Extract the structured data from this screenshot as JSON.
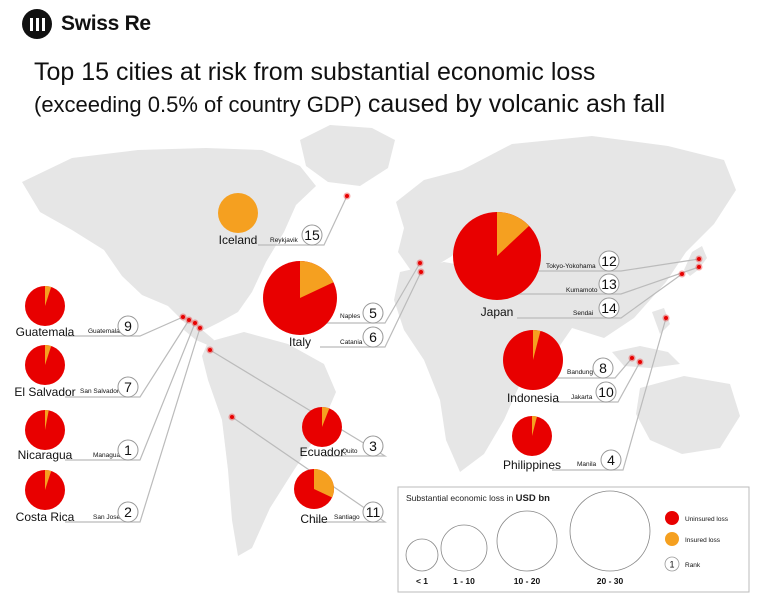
{
  "brand": {
    "name": "Swiss Re"
  },
  "title": {
    "line1": "Top 15 cities at risk from substantial economic loss",
    "line2a": "(exceeding 0.5% of country GDP)",
    "line2b": "caused by volcanic ash fall"
  },
  "colors": {
    "uninsured": "#e80000",
    "insured": "#f5a020",
    "map": "#e6e6e6",
    "leader": "#bbbbbb"
  },
  "units": "USD bn",
  "countries": [
    {
      "name": "Iceland",
      "insured_share": 1.0,
      "size_class": "10 - 20",
      "cities": [
        {
          "name": "Reykjavik",
          "rank": 15
        }
      ]
    },
    {
      "name": "Italy",
      "insured_share": 0.18,
      "size_class": "20 - 30",
      "cities": [
        {
          "name": "Naples",
          "rank": 5
        },
        {
          "name": "Catania",
          "rank": 6
        }
      ]
    },
    {
      "name": "Japan",
      "insured_share": 0.13,
      "size_class": "20 - 30",
      "cities": [
        {
          "name": "Tokyo-Yokohama",
          "rank": 12
        },
        {
          "name": "Kumamoto",
          "rank": 13
        },
        {
          "name": "Sendai",
          "rank": 14
        }
      ]
    },
    {
      "name": "Guatemala",
      "insured_share": 0.05,
      "size_class": "1 - 10",
      "cities": [
        {
          "name": "Guatemala",
          "rank": 9
        }
      ]
    },
    {
      "name": "El Salvador",
      "insured_share": 0.05,
      "size_class": "1 - 10",
      "cities": [
        {
          "name": "San Salvador",
          "rank": 7
        }
      ]
    },
    {
      "name": "Nicaragua",
      "insured_share": 0.03,
      "size_class": "1 - 10",
      "cities": [
        {
          "name": "Managua",
          "rank": 1
        }
      ]
    },
    {
      "name": "Costa Rica",
      "insured_share": 0.05,
      "size_class": "1 - 10",
      "cities": [
        {
          "name": "San José",
          "rank": 2
        }
      ]
    },
    {
      "name": "Ecuador",
      "insured_share": 0.06,
      "size_class": "1 - 10",
      "cities": [
        {
          "name": "Quito",
          "rank": 3
        }
      ]
    },
    {
      "name": "Chile",
      "insured_share": 0.32,
      "size_class": "1 - 10",
      "cities": [
        {
          "name": "Santiago",
          "rank": 11
        }
      ]
    },
    {
      "name": "Indonesia",
      "insured_share": 0.04,
      "size_class": "10 - 20",
      "cities": [
        {
          "name": "Bandung",
          "rank": 8
        },
        {
          "name": "Jakarta",
          "rank": 10
        }
      ]
    },
    {
      "name": "Philippines",
      "insured_share": 0.04,
      "size_class": "1 - 10",
      "cities": [
        {
          "name": "Manila",
          "rank": 4
        }
      ]
    }
  ],
  "legend": {
    "title": "Substantial economic loss in",
    "unit": "USD bn",
    "sizes": [
      "< 1",
      "1 - 10",
      "10 - 20",
      "20 - 30"
    ],
    "items": [
      {
        "label": "Uninsured loss"
      },
      {
        "label": "Insured loss"
      },
      {
        "label": "Rank",
        "symbol": "1"
      }
    ]
  }
}
